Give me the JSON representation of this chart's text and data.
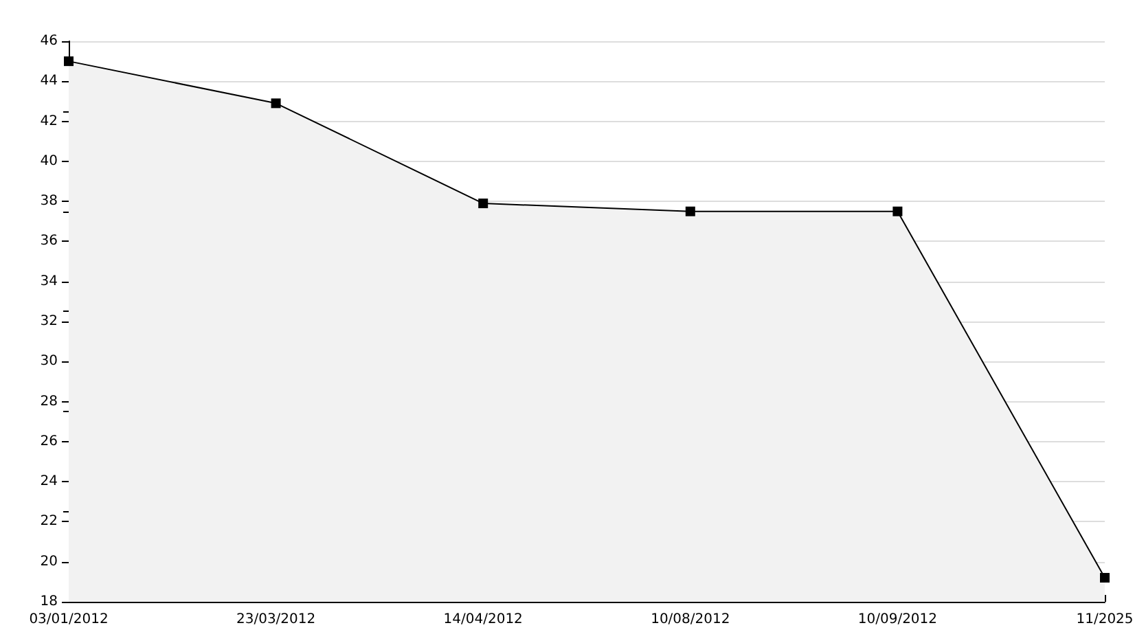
{
  "chart_data": {
    "type": "area",
    "categories": [
      "03/01/2012",
      "23/03/2012",
      "14/04/2012",
      "10/08/2012",
      "10/09/2012",
      "11/2025"
    ],
    "series": [
      {
        "color": "#000000",
        "values": [
          45,
          42.9,
          37.9,
          37.5,
          37.5,
          19.2
        ]
      }
    ],
    "ylim": [
      18,
      46
    ],
    "yticks": [
      18,
      20,
      22,
      24,
      26,
      28,
      30,
      32,
      34,
      36,
      38,
      40,
      42,
      44,
      46
    ],
    "grid": "y",
    "marker": "square",
    "line_style": "solid"
  }
}
